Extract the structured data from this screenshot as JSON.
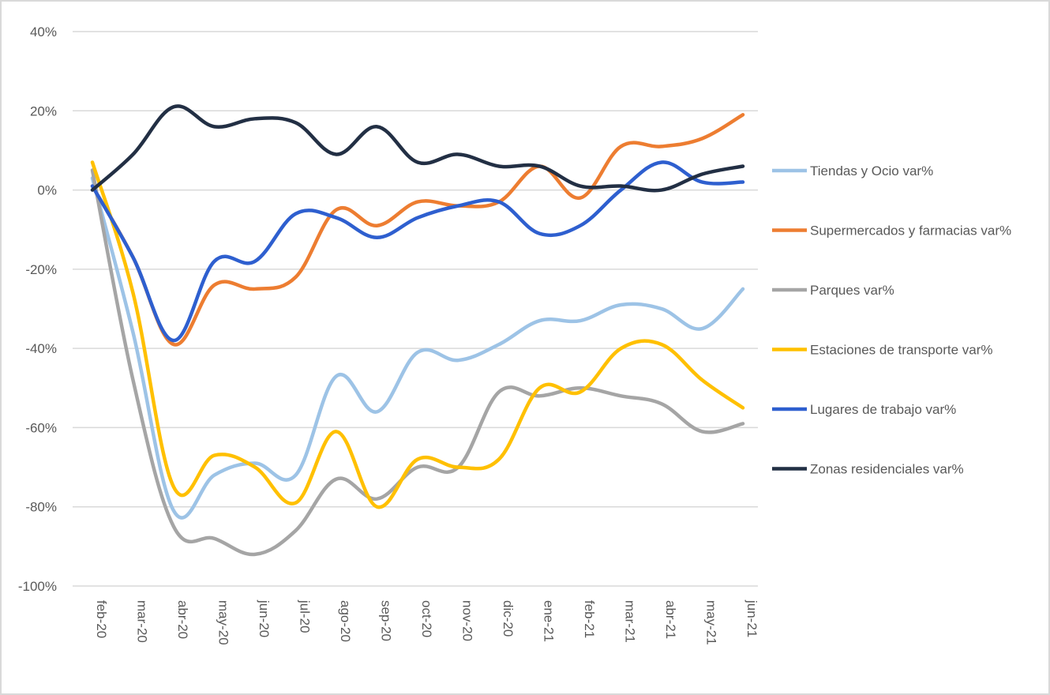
{
  "chart_data": {
    "type": "line",
    "title": "",
    "xlabel": "",
    "ylabel": "",
    "ylim": [
      -100,
      40
    ],
    "yticks": [
      40,
      20,
      0,
      -20,
      -40,
      -60,
      -80,
      -100
    ],
    "ytick_labels": [
      "40%",
      "20%",
      "0%",
      "-20%",
      "-40%",
      "-60%",
      "-80%",
      "-100%"
    ],
    "grid": "horizontal",
    "legend_position": "right",
    "categories": [
      "feb-20",
      "mar-20",
      "abr-20",
      "may-20",
      "jun-20",
      "jul-20",
      "ago-20",
      "sep-20",
      "oct-20",
      "nov-20",
      "dic-20",
      "ene-21",
      "feb-21",
      "mar-21",
      "abr-21",
      "may-21",
      "jun-21"
    ],
    "series": [
      {
        "name": "Tiendas y Ocio var%",
        "color": "#9dc3e6",
        "values": [
          3,
          -36,
          -81,
          -72,
          -69,
          -72,
          -47,
          -56,
          -41,
          -43,
          -39,
          -33,
          -33,
          -29,
          -30,
          -35,
          -25
        ]
      },
      {
        "name": "Supermercados y farmacias var%",
        "color": "#ed7d31",
        "values": [
          1,
          -17,
          -39,
          -24,
          -25,
          -22,
          -5,
          -9,
          -3,
          -4,
          -3,
          6,
          -2,
          11,
          11,
          13,
          19
        ]
      },
      {
        "name": "Parques var%",
        "color": "#a5a5a5",
        "values": [
          5,
          -48,
          -85,
          -88,
          -92,
          -86,
          -73,
          -78,
          -70,
          -70,
          -51,
          -52,
          -50,
          -52,
          -54,
          -61,
          -59
        ]
      },
      {
        "name": "Estaciones de transporte var%",
        "color": "#ffc000",
        "values": [
          7,
          -26,
          -75,
          -67,
          -70,
          -79,
          -61,
          -80,
          -68,
          -70,
          -68,
          -50,
          -51,
          -40,
          -39,
          -48,
          -55
        ]
      },
      {
        "name": "Lugares de trabajo var%",
        "color": "#2e5fcf",
        "values": [
          1,
          -17,
          -38,
          -18,
          -18,
          -6,
          -7,
          -12,
          -7,
          -4,
          -3,
          -11,
          -9,
          0,
          7,
          2,
          2
        ]
      },
      {
        "name": "Zonas residenciales var%",
        "color": "#222f44",
        "values": [
          0,
          9,
          21,
          16,
          18,
          17,
          9,
          16,
          7,
          9,
          6,
          6,
          1,
          1,
          0,
          4,
          6
        ]
      }
    ]
  }
}
